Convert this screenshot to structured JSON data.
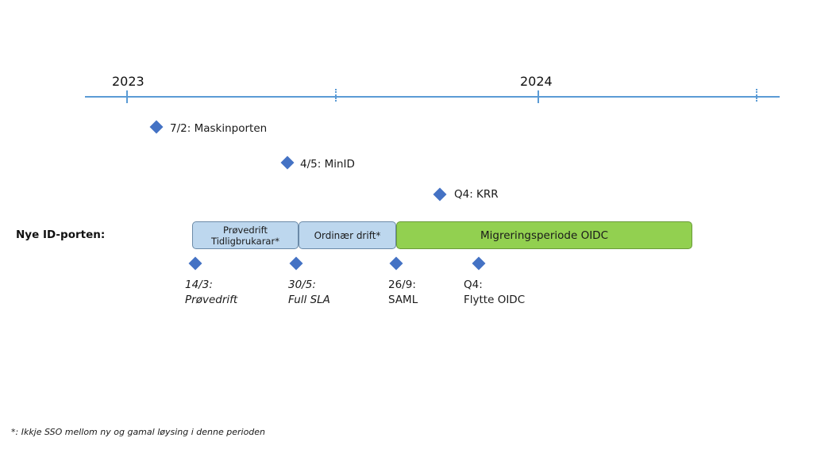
{
  "timeline": {
    "years": [
      "2023",
      "2024"
    ]
  },
  "milestones": [
    {
      "date": "7/2",
      "label": "7/2: Maskinporten"
    },
    {
      "date": "4/5",
      "label": "4/5: MinID"
    },
    {
      "date": "Q4",
      "label": "Q4: KRR"
    }
  ],
  "row_label": "Nye ID-porten:",
  "phases": [
    {
      "line1": "Prøvedrift",
      "line2": "Tidligbrukarar*"
    },
    {
      "label": "Ordinær drift*"
    },
    {
      "label": "Migreringsperiode OIDC"
    }
  ],
  "events": [
    {
      "line1": "14/3:",
      "line2": "Prøvedrift",
      "italic": true
    },
    {
      "line1": "30/5:",
      "line2": "Full SLA",
      "italic": true
    },
    {
      "line1": "26/9:",
      "line2": "SAML",
      "italic": false
    },
    {
      "line1": "Q4:",
      "line2": "Flytte OIDC",
      "italic": false
    }
  ],
  "footnote": "*:  Ikkje SSO mellom ny og gamal løysing i denne perioden",
  "colors": {
    "axis": "#5b9bd5",
    "diamond": "#4472c4",
    "phase_light": "#bdd7ee",
    "phase_green": "#92d050"
  }
}
